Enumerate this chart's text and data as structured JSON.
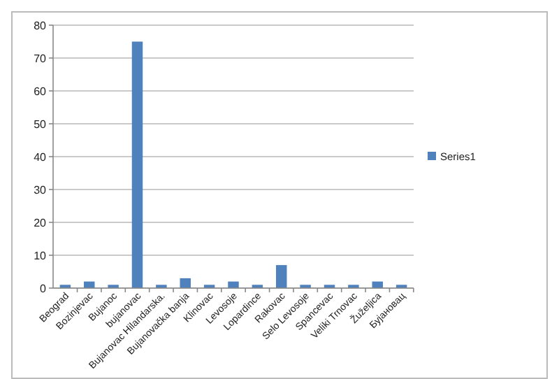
{
  "chart_data": {
    "type": "bar",
    "categories": [
      "Beograd",
      "Bozinjevac",
      "Bujanoc",
      "bujanovac",
      "Bujanovac Hilandarska.",
      "Bujanovačka banja",
      "Klinovac",
      "Levosoje",
      "Lopardince",
      "Rakovac",
      "Selo Levosoje",
      "Spancevac",
      "Veliki Trnovac",
      "Žuželjica",
      "Бујановац"
    ],
    "series": [
      {
        "name": "Series1",
        "color": "#4f81bd",
        "values": [
          1,
          2,
          1,
          75,
          1,
          3,
          1,
          2,
          1,
          7,
          1,
          1,
          1,
          2,
          1
        ]
      }
    ],
    "ylim": [
      0,
      80
    ],
    "yticks": [
      0,
      10,
      20,
      30,
      40,
      50,
      60,
      70,
      80
    ],
    "grid": "y",
    "legend": "right"
  }
}
